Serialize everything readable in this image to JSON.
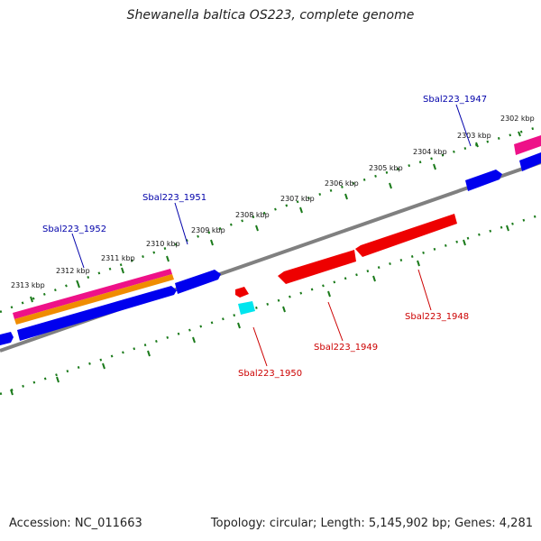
{
  "title": "Shewanella baltica OS223, complete genome",
  "footer": {
    "accession": "Accession: NC_011663",
    "summary": "Topology: circular; Length: 5,145,902 bp; Genes: 4,281"
  },
  "ticks": [
    {
      "label": "2302 kbp"
    },
    {
      "label": "2303 kbp"
    },
    {
      "label": "2304 kbp"
    },
    {
      "label": "2305 kbp"
    },
    {
      "label": "2306 kbp"
    },
    {
      "label": "2307 kbp"
    },
    {
      "label": "2308 kbp"
    },
    {
      "label": "2309 kbp"
    },
    {
      "label": "2310 kbp"
    },
    {
      "label": "2311 kbp"
    },
    {
      "label": "2312 kbp"
    },
    {
      "label": "2313 kbp"
    }
  ],
  "genes": [
    {
      "label": "Sbal223_1947",
      "strand": "forward"
    },
    {
      "label": "Sbal223_1948",
      "strand": "reverse"
    },
    {
      "label": "Sbal223_1949",
      "strand": "reverse"
    },
    {
      "label": "Sbal223_1950",
      "strand": "reverse"
    },
    {
      "label": "Sbal223_1951",
      "strand": "forward"
    },
    {
      "label": "Sbal223_1952",
      "strand": "forward"
    }
  ],
  "colors": {
    "forward_cds": "#0000ee",
    "reverse_cds": "#ee0000",
    "backbone": "#808080",
    "tick_marks": "#1a7a1a",
    "forward_label": "#0000aa",
    "reverse_label": "#cc0000",
    "magenta_track": "#ee1188",
    "orange_track": "#f08c00",
    "cyan_feature": "#00e5ee"
  }
}
